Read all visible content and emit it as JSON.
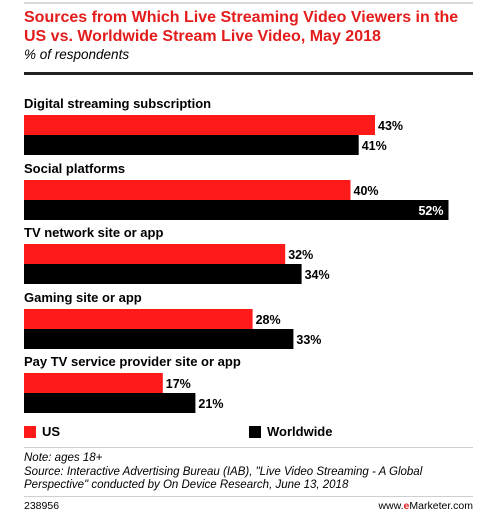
{
  "title": "Sources from Which Live Streaming Video Viewers in the US vs. Worldwide Stream Live Video, May 2018",
  "subtitle": "% of respondents",
  "colors": {
    "us": "#ff1a1a",
    "worldwide": "#000000",
    "title": "#e31c1c"
  },
  "chart_data": {
    "type": "bar",
    "orientation": "horizontal",
    "categories": [
      "Digital streaming subscription",
      "Social platforms",
      "TV network site or app",
      "Gaming site or app",
      "Pay TV service provider site or app"
    ],
    "series": [
      {
        "name": "US",
        "values": [
          43,
          40,
          32,
          28,
          17
        ],
        "labels": [
          "43%",
          "40%",
          "32%",
          "28%",
          "17%"
        ]
      },
      {
        "name": "Worldwide",
        "values": [
          41,
          52,
          34,
          33,
          21
        ],
        "labels": [
          "41%",
          "52%",
          "34%",
          "33%",
          "21%"
        ]
      }
    ],
    "xlim": [
      0,
      55
    ],
    "grid": false,
    "legend": "bottom"
  },
  "legend": {
    "us_label": "US",
    "worldwide_label": "Worldwide"
  },
  "note": "Note: ages 18+",
  "source": "Source: Interactive Advertising Bureau (IAB), \"Live Video Streaming - A Global Perspective\" conducted by On Device Research, June 13, 2018",
  "footer": {
    "id": "238956",
    "site_prefix": "www.",
    "site_brand": "e",
    "site_rest": "Marketer.com"
  }
}
